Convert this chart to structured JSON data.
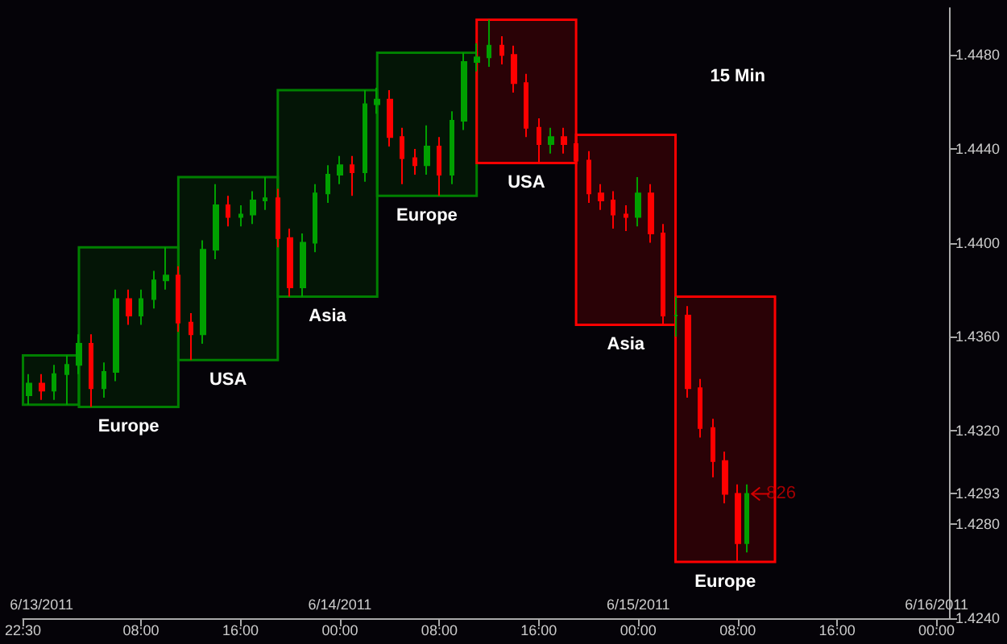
{
  "chart_data": {
    "type": "candlestick",
    "x": [
      "2011-06-12T23:00",
      "2011-06-13T00:00",
      "2011-06-13T01:00",
      "2011-06-13T02:00",
      "2011-06-13T03:00",
      "2011-06-13T04:00",
      "2011-06-13T05:00",
      "2011-06-13T06:00",
      "2011-06-13T07:00",
      "2011-06-13T08:00",
      "2011-06-13T09:00",
      "2011-06-13T10:00",
      "2011-06-13T11:00",
      "2011-06-13T12:00",
      "2011-06-13T13:00",
      "2011-06-13T14:00",
      "2011-06-13T15:00",
      "2011-06-13T16:00",
      "2011-06-13T17:00",
      "2011-06-13T18:00",
      "2011-06-13T19:00",
      "2011-06-13T20:00",
      "2011-06-13T21:00",
      "2011-06-13T22:00",
      "2011-06-13T23:00",
      "2011-06-14T00:00",
      "2011-06-14T01:00",
      "2011-06-14T02:00",
      "2011-06-14T03:00",
      "2011-06-14T04:00",
      "2011-06-14T05:00",
      "2011-06-14T06:00",
      "2011-06-14T07:00",
      "2011-06-14T08:00",
      "2011-06-14T09:00",
      "2011-06-14T10:00",
      "2011-06-14T11:00",
      "2011-06-14T12:00",
      "2011-06-14T13:00",
      "2011-06-14T14:00",
      "2011-06-14T15:00",
      "2011-06-14T16:00",
      "2011-06-14T17:00",
      "2011-06-14T18:00",
      "2011-06-14T19:00",
      "2011-06-14T20:00",
      "2011-06-14T21:00",
      "2011-06-14T22:00",
      "2011-06-14T23:00",
      "2011-06-15T00:00",
      "2011-06-15T01:00",
      "2011-06-15T02:00",
      "2011-06-15T03:00",
      "2011-06-15T04:00",
      "2011-06-15T05:00",
      "2011-06-15T06:00",
      "2011-06-15T07:00",
      "2011-06-15T08:00",
      "2011-06-15T08:45"
    ],
    "ohlc": [
      [
        1.4335,
        1.4344,
        1.4331,
        1.434
      ],
      [
        1.434,
        1.4344,
        1.4333,
        1.4337
      ],
      [
        1.4337,
        1.4348,
        1.4333,
        1.4344
      ],
      [
        1.4344,
        1.4352,
        1.4331,
        1.4348
      ],
      [
        1.4348,
        1.4361,
        1.4344,
        1.4357
      ],
      [
        1.4357,
        1.4361,
        1.433,
        1.4338
      ],
      [
        1.4338,
        1.4349,
        1.4334,
        1.4345
      ],
      [
        1.4345,
        1.438,
        1.4341,
        1.4376
      ],
      [
        1.4376,
        1.438,
        1.4365,
        1.4369
      ],
      [
        1.4369,
        1.438,
        1.4365,
        1.4376
      ],
      [
        1.4376,
        1.4388,
        1.4372,
        1.4384
      ],
      [
        1.4384,
        1.4398,
        1.438,
        1.4386
      ],
      [
        1.4386,
        1.439,
        1.4362,
        1.4366
      ],
      [
        1.4366,
        1.437,
        1.435,
        1.4361
      ],
      [
        1.4361,
        1.4401,
        1.4357,
        1.4397
      ],
      [
        1.4397,
        1.4425,
        1.4393,
        1.4416
      ],
      [
        1.4416,
        1.442,
        1.4407,
        1.4411
      ],
      [
        1.4411,
        1.4416,
        1.4407,
        1.4412
      ],
      [
        1.4412,
        1.4422,
        1.4408,
        1.4418
      ],
      [
        1.4418,
        1.4428,
        1.4414,
        1.4419
      ],
      [
        1.4419,
        1.4423,
        1.4398,
        1.4402
      ],
      [
        1.4402,
        1.4406,
        1.4377,
        1.4381
      ],
      [
        1.4381,
        1.4404,
        1.4377,
        1.44
      ],
      [
        1.44,
        1.4425,
        1.4396,
        1.4421
      ],
      [
        1.4421,
        1.4433,
        1.4417,
        1.4429
      ],
      [
        1.4429,
        1.4437,
        1.4425,
        1.4433
      ],
      [
        1.4433,
        1.4437,
        1.442,
        1.443
      ],
      [
        1.443,
        1.4465,
        1.4426,
        1.4459
      ],
      [
        1.4459,
        1.4466,
        1.4455,
        1.4461
      ],
      [
        1.4461,
        1.4465,
        1.4441,
        1.4445
      ],
      [
        1.4445,
        1.4449,
        1.4425,
        1.4436
      ],
      [
        1.4436,
        1.444,
        1.4429,
        1.4433
      ],
      [
        1.4433,
        1.445,
        1.4429,
        1.4441
      ],
      [
        1.4441,
        1.4445,
        1.442,
        1.4429
      ],
      [
        1.4429,
        1.4456,
        1.4425,
        1.4452
      ],
      [
        1.4452,
        1.4481,
        1.4448,
        1.4477
      ],
      [
        1.4477,
        1.4485,
        1.4473,
        1.4479
      ],
      [
        1.4479,
        1.4495,
        1.4475,
        1.4484
      ],
      [
        1.4484,
        1.4488,
        1.4476,
        1.448
      ],
      [
        1.448,
        1.4484,
        1.4464,
        1.4468
      ],
      [
        1.4468,
        1.4472,
        1.4445,
        1.4449
      ],
      [
        1.4449,
        1.4453,
        1.4434,
        1.4442
      ],
      [
        1.4442,
        1.4449,
        1.4438,
        1.4445
      ],
      [
        1.4445,
        1.4449,
        1.4438,
        1.4442
      ],
      [
        1.4442,
        1.4446,
        1.4431,
        1.4435
      ],
      [
        1.4435,
        1.4439,
        1.4417,
        1.4421
      ],
      [
        1.4421,
        1.4425,
        1.4414,
        1.4418
      ],
      [
        1.4418,
        1.4422,
        1.4406,
        1.4412
      ],
      [
        1.4412,
        1.4416,
        1.4405,
        1.4411
      ],
      [
        1.4411,
        1.4428,
        1.4407,
        1.4421
      ],
      [
        1.4421,
        1.4425,
        1.44,
        1.4404
      ],
      [
        1.4404,
        1.4408,
        1.4365,
        1.4369
      ],
      [
        1.4369,
        1.4377,
        1.436,
        1.4369
      ],
      [
        1.4369,
        1.4373,
        1.4334,
        1.4338
      ],
      [
        1.4338,
        1.4342,
        1.4317,
        1.4321
      ],
      [
        1.4321,
        1.4325,
        1.43,
        1.4307
      ],
      [
        1.4307,
        1.4311,
        1.4289,
        1.4293
      ],
      [
        1.4293,
        1.4297,
        1.4264,
        1.4272
      ],
      [
        1.4272,
        1.4297,
        1.4268,
        1.4293
      ]
    ],
    "xlim": [
      "2011-06-12T22:30",
      "2011-06-16T01:00"
    ],
    "xticks": [
      {
        "value": "2011-06-12T22:30",
        "label": "22:30"
      },
      {
        "value": "2011-06-13T08:00",
        "label": "08:00"
      },
      {
        "value": "2011-06-13T16:00",
        "label": "16:00"
      },
      {
        "value": "2011-06-14T00:00",
        "label": "00:00"
      },
      {
        "value": "2011-06-14T08:00",
        "label": "08:00"
      },
      {
        "value": "2011-06-14T16:00",
        "label": "16:00"
      },
      {
        "value": "2011-06-15T00:00",
        "label": "00:00"
      },
      {
        "value": "2011-06-15T08:00",
        "label": "08:00"
      },
      {
        "value": "2011-06-15T16:00",
        "label": "16:00"
      },
      {
        "value": "2011-06-16T00:00",
        "label": "00:00"
      }
    ],
    "ylim": [
      1.424,
      1.45
    ],
    "x2lim": [
      "2011-06-12T22:30",
      "2011-06-16T01:00"
    ],
    "x2ticks": [
      {
        "value": "2011-06-13T00:00",
        "label": "6/13/2011"
      },
      {
        "value": "2011-06-14T00:00",
        "label": "6/14/2011"
      },
      {
        "value": "2011-06-15T00:00",
        "label": "6/15/2011"
      },
      {
        "value": "2011-06-16T00:00",
        "label": "6/16/2011"
      }
    ],
    "yticks": [
      {
        "value": 1.424,
        "label": "1.4240"
      },
      {
        "value": 1.428,
        "label": "1.4280"
      },
      {
        "value": 1.4293,
        "label": "1.4293"
      },
      {
        "value": 1.432,
        "label": "1.4320"
      },
      {
        "value": 1.436,
        "label": "1.4360"
      },
      {
        "value": 1.44,
        "label": "1.4400"
      },
      {
        "value": 1.444,
        "label": "1.4440"
      },
      {
        "value": 1.448,
        "label": "1.4480"
      }
    ],
    "bands": [
      {
        "axis": "x",
        "from": "2011-06-12T22:30",
        "to": "2011-06-13T03:00",
        "color": "#008000"
      },
      {
        "axis": "x",
        "from": "2011-06-13T03:00",
        "to": "2011-06-13T11:00",
        "label": "Europe",
        "color": "#008000"
      },
      {
        "axis": "x",
        "from": "2011-06-13T11:00",
        "to": "2011-06-13T19:00",
        "label": "USA",
        "color": "#008000"
      },
      {
        "axis": "x",
        "from": "2011-06-13T19:00",
        "to": "2011-06-14T03:00",
        "label": "Asia",
        "color": "#008000"
      },
      {
        "axis": "x",
        "from": "2011-06-14T03:00",
        "to": "2011-06-14T11:00",
        "label": "Europe",
        "color": "#008000"
      },
      {
        "axis": "x",
        "from": "2011-06-14T11:00",
        "to": "2011-06-14T19:00",
        "label": "USA",
        "color": "#ff0000"
      },
      {
        "axis": "x",
        "from": "2011-06-14T19:00",
        "to": "2011-06-15T03:00",
        "label": "Asia",
        "color": "#ff0000"
      },
      {
        "axis": "x",
        "from": "2011-06-15T03:00",
        "to": "2011-06-15T11:00",
        "label": "Europe",
        "color": "#ff0000"
      }
    ],
    "annotations": [
      "15 Min",
      {
        "text": "826",
        "x": "2011-06-15T08:45",
        "y": 1.4293
      }
    ],
    "grid": false
  }
}
